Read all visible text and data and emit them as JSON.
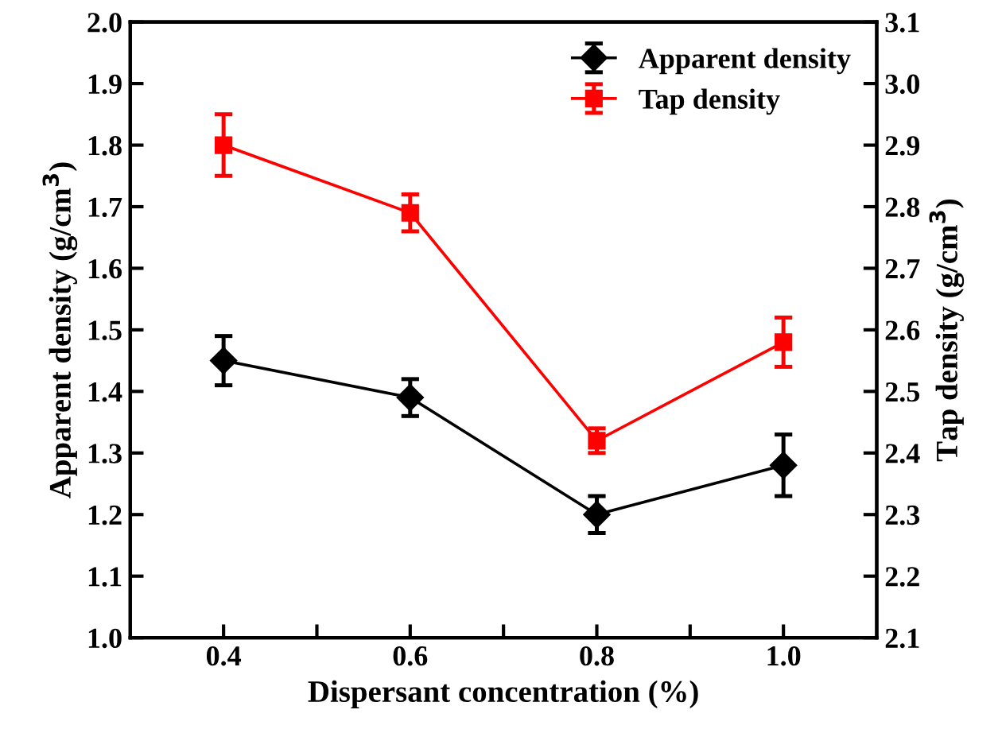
{
  "chart_data": {
    "type": "line",
    "xlabel": "Dispersant concentration (%)",
    "ylabel": "Apparent density (g/cm$^{3}$)",
    "y2label": "Tap density (g/cm$^{3}$)",
    "x": [
      0.4,
      0.6,
      0.8,
      1.0
    ],
    "series": [
      {
        "name": "Apparent density",
        "color": "#000000",
        "marker": "diamond",
        "values": [
          1.45,
          1.39,
          1.2,
          1.28
        ],
        "errors": [
          0.04,
          0.03,
          0.03,
          0.05
        ]
      },
      {
        "name": "Tap density",
        "color": "#ff0000",
        "marker": "square",
        "axis": "y2",
        "values": [
          2.9,
          2.79,
          2.42,
          2.58
        ],
        "errors": [
          0.05,
          0.03,
          0.02,
          0.04
        ]
      }
    ],
    "xlim": [
      0.3,
      1.1
    ],
    "xticks": [
      0.4,
      {
        "value": 0.5,
        "label": null
      },
      0.6,
      {
        "value": 0.7,
        "label": null
      },
      0.8,
      {
        "value": 0.9,
        "label": null
      },
      {
        "value": 1.0,
        "label": "1.0"
      }
    ],
    "ylim": [
      1.0,
      2.0
    ],
    "yticks": [
      {
        "value": 1.0,
        "label": "1.0"
      },
      1.1,
      1.2,
      1.3,
      1.4,
      1.5,
      1.6,
      1.7,
      1.8,
      1.9,
      {
        "value": 2.0,
        "label": "2.0"
      }
    ],
    "y2lim": [
      2.1,
      3.1
    ],
    "y2ticks": [
      2.1,
      2.2,
      2.3,
      2.4,
      2.5,
      2.6,
      2.7,
      2.8,
      2.9,
      {
        "value": 3.0,
        "label": "3.0"
      },
      3.1
    ],
    "legend": "top right",
    "grid": false,
    "line_style": "solid"
  }
}
